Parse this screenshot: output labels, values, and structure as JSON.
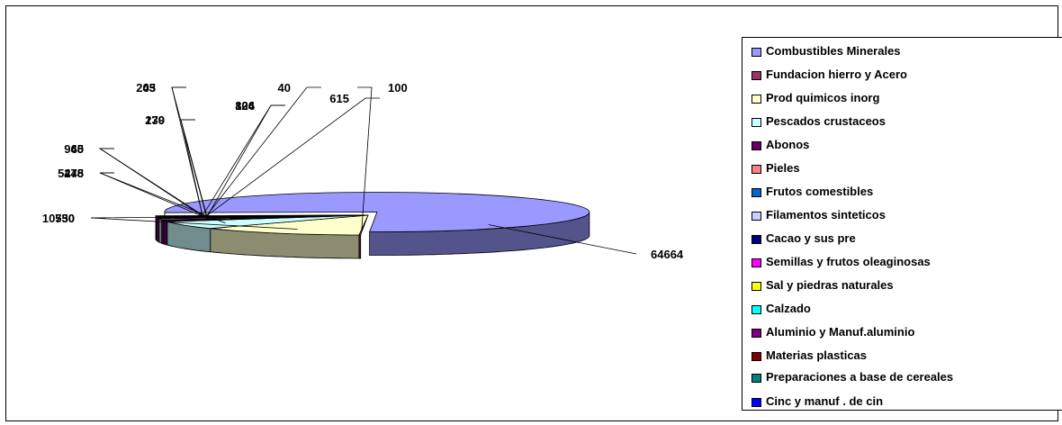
{
  "chart_data": {
    "type": "pie",
    "title": "",
    "legend_position": "right",
    "slices": [
      {
        "label": "Combustibles Minerales",
        "value": 64664,
        "color": "#9999ff"
      },
      {
        "label": "Fundacion hierro y Acero",
        "value": 100,
        "color": "#993366"
      },
      {
        "label": "Prod quimicos inorg",
        "value": 10750,
        "color": "#ffffcc"
      },
      {
        "label": "Pescados crustaceos",
        "value": 5445,
        "color": "#ccffff"
      },
      {
        "label": "Abonos",
        "value": 940,
        "color": "#660066"
      },
      {
        "label": "Pieles",
        "value": 279,
        "color": "#ff8080"
      },
      {
        "label": "Frutos comestibles",
        "value": 43,
        "color": "#0066cc"
      },
      {
        "label": "Filamentos sinteticos",
        "value": 824,
        "color": "#ccccff"
      },
      {
        "label": "Cacao y sus pre",
        "value": 40,
        "color": "#000080"
      },
      {
        "label": "Semillas y frutos oleaginosas",
        "value": 615,
        "color": "#ff00ff"
      },
      {
        "label": "Sal y piedras naturales",
        "value": 530,
        "color": "#ffff00"
      },
      {
        "label": "Calzado",
        "value": 278,
        "color": "#00ffff"
      },
      {
        "label": "Aluminio y Manuf.aluminio",
        "value": 65,
        "color": "#800080"
      },
      {
        "label": "Materias plasticas",
        "value": 130,
        "color": "#800000"
      },
      {
        "label": "Preparaciones a base de cereales",
        "value": 205,
        "color": "#008080"
      },
      {
        "label": "Cinc y manuf . de cin",
        "value": 106,
        "color": "#0000ff"
      }
    ]
  }
}
